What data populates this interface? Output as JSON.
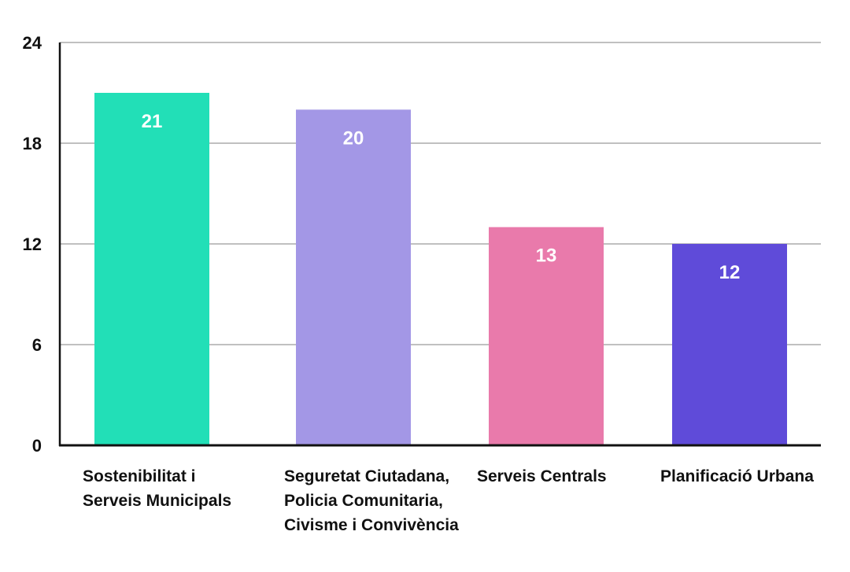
{
  "chart_data": {
    "type": "bar",
    "categories": [
      [
        "Sostenibilitat i",
        "Serveis Municipals"
      ],
      [
        "Seguretat Ciutadana,",
        "Policia Comunitaria,",
        "Civisme i Convivència"
      ],
      [
        "Serveis Centrals"
      ],
      [
        "Planificació Urbana"
      ]
    ],
    "values": [
      21,
      20,
      13,
      12
    ],
    "data_labels": [
      "21",
      "20",
      "13",
      "12"
    ],
    "colors": [
      "#22dfb7",
      "#a397e6",
      "#e97aab",
      "#5f4bd9"
    ],
    "yticks": [
      0,
      6,
      12,
      18,
      24
    ],
    "ylim": [
      0,
      24
    ],
    "grid": true,
    "gridline_color": "#9a9a9a",
    "axis_color": "#111111",
    "legend": false
  }
}
